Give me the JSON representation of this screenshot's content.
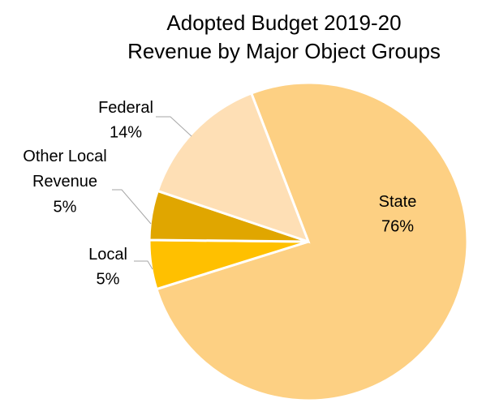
{
  "chart_data": {
    "type": "pie",
    "title": [
      "Adopted Budget 2019-20",
      "Revenue by Major Object Groups"
    ],
    "categories": [
      "State",
      "Local",
      "Other Local Revenue",
      "Federal"
    ],
    "values": [
      76,
      5,
      5,
      14
    ],
    "value_labels": [
      "76%",
      "5%",
      "5%",
      "14%"
    ],
    "colors": [
      "#fdd083",
      "#ffc000",
      "#e0a600",
      "#fedfb5"
    ]
  }
}
